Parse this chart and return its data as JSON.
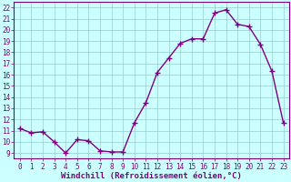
{
  "x": [
    0,
    1,
    2,
    3,
    4,
    5,
    6,
    7,
    8,
    9,
    10,
    11,
    12,
    13,
    14,
    15,
    16,
    17,
    18,
    19,
    20,
    21,
    22,
    23
  ],
  "y": [
    11.2,
    10.8,
    10.9,
    10.0,
    9.0,
    10.2,
    10.1,
    9.2,
    9.1,
    9.1,
    11.7,
    13.5,
    16.2,
    17.5,
    18.8,
    19.2,
    19.2,
    21.5,
    21.8,
    20.5,
    20.3,
    18.7,
    16.3,
    11.7
  ],
  "line_color": "#800080",
  "marker": "+",
  "marker_size": 4,
  "bg_color": "#ccffff",
  "grid_color": "#99cccc",
  "xlabel": "Windchill (Refroidissement éolien,°C)",
  "ylabel": "",
  "xlim": [
    -0.5,
    23.5
  ],
  "ylim": [
    8.5,
    22.5
  ],
  "yticks": [
    9,
    10,
    11,
    12,
    13,
    14,
    15,
    16,
    17,
    18,
    19,
    20,
    21,
    22
  ],
  "xticks": [
    0,
    1,
    2,
    3,
    4,
    5,
    6,
    7,
    8,
    9,
    10,
    11,
    12,
    13,
    14,
    15,
    16,
    17,
    18,
    19,
    20,
    21,
    22,
    23
  ],
  "tick_color": "#800080",
  "label_color": "#800080",
  "axis_color": "#800080",
  "line_width": 1.0,
  "tick_fontsize": 5.5,
  "xlabel_fontsize": 6.5
}
